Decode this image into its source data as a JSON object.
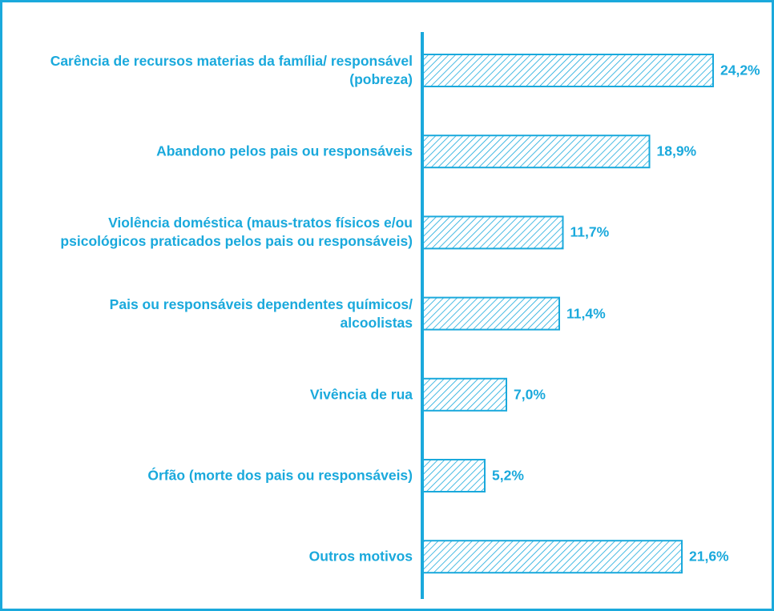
{
  "chart_data": {
    "type": "bar",
    "orientation": "horizontal",
    "categories": [
      "Carência de recursos materias da família/ responsável (pobreza)",
      "Abandono pelos pais ou responsáveis",
      "Violência doméstica (maus-tratos físicos e/ou psicológicos praticados pelos pais ou responsáveis)",
      "Pais ou responsáveis dependentes químicos/ alcoolistas",
      "Vivência de rua",
      "Órfão (morte dos pais ou responsáveis)",
      "Outros motivos"
    ],
    "values": [
      24.2,
      18.9,
      11.7,
      11.4,
      7.0,
      5.2,
      21.6
    ],
    "value_labels": [
      "24,2%",
      "18,9%",
      "11,7%",
      "11,4%",
      "7,0%",
      "5,2%",
      "21,6%"
    ],
    "color": "#1aa9dc"
  }
}
